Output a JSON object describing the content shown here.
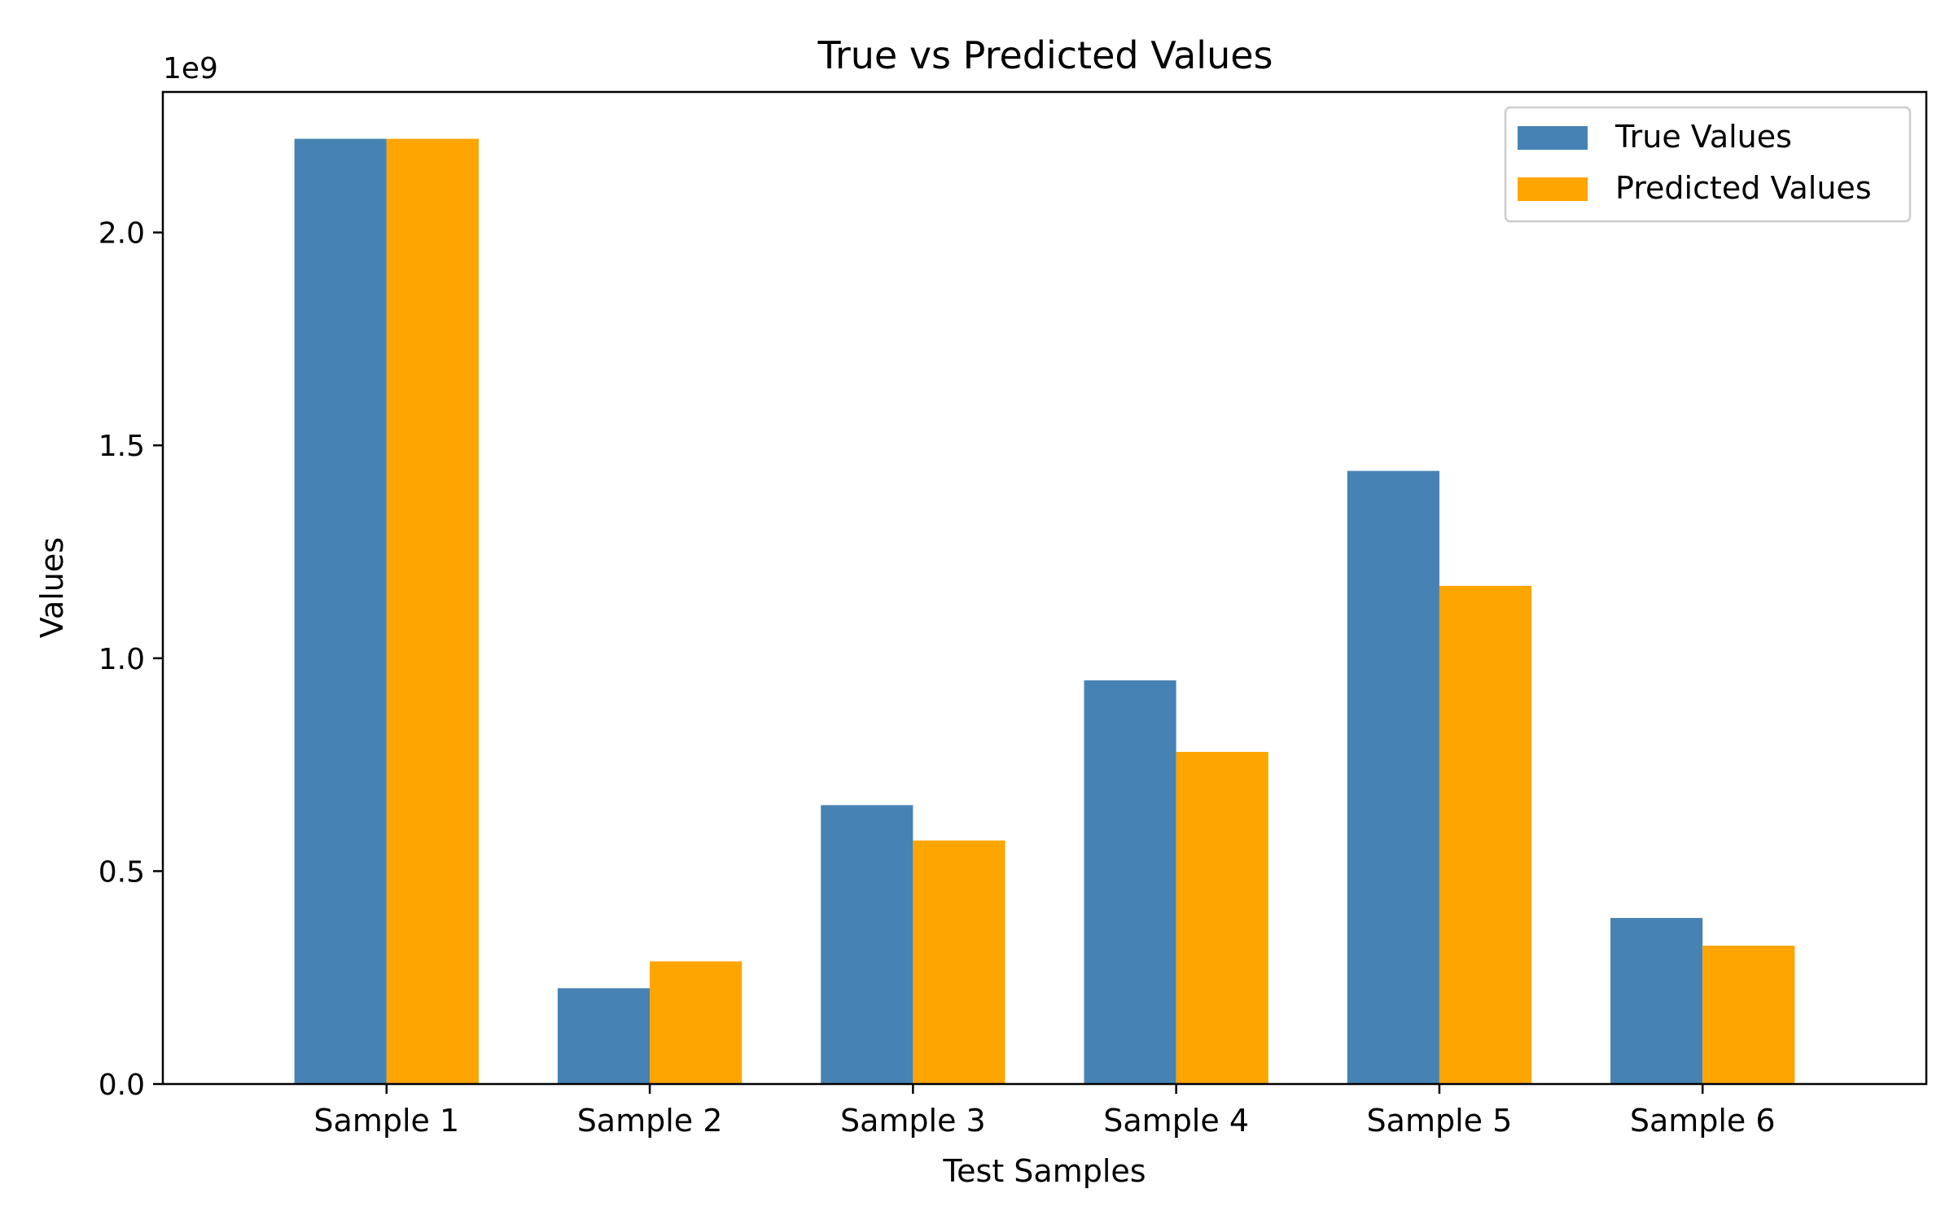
{
  "chart_data": {
    "type": "bar",
    "title": "True vs Predicted Values",
    "xlabel": "Test Samples",
    "ylabel": "Values",
    "y_offset_label": "1e9",
    "categories": [
      "Sample 1",
      "Sample 2",
      "Sample 3",
      "Sample 4",
      "Sample 5",
      "Sample 6"
    ],
    "series": [
      {
        "name": "True Values",
        "color": "#4682B4",
        "values": [
          2.22,
          0.225,
          0.655,
          0.948,
          1.44,
          0.39
        ]
      },
      {
        "name": "Predicted Values",
        "color": "#FFA500",
        "values": [
          2.22,
          0.288,
          0.572,
          0.78,
          1.17,
          0.325
        ]
      }
    ],
    "value_scale": 1000000000.0,
    "ylim": [
      0,
      2.33
    ],
    "yticks": [
      {
        "value": 0.0,
        "label": "0.0"
      },
      {
        "value": 0.5,
        "label": "0.5"
      },
      {
        "value": 1.0,
        "label": "1.0"
      },
      {
        "value": 1.5,
        "label": "1.5"
      },
      {
        "value": 2.0,
        "label": "2.0"
      }
    ],
    "grid": false,
    "legend_position": "top-right"
  }
}
